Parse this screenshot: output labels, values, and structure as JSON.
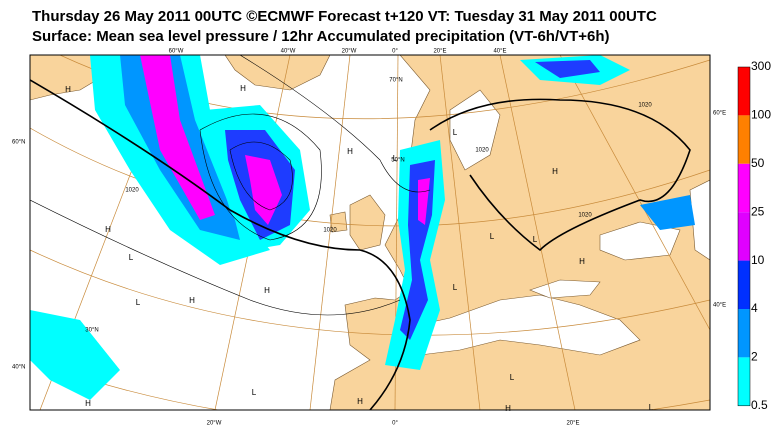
{
  "header": {
    "line1": "Thursday 26 May 2011 00UTC ©ECMWF Forecast t+120 VT: Tuesday 31 May 2011 00UTC",
    "line2": "Surface: Mean sea level pressure / 12hr Accumulated precipitation (VT-6h/VT+6h)"
  },
  "colorbar": {
    "labels": [
      300,
      100,
      50,
      25,
      10,
      4,
      2,
      0.5
    ]
  },
  "map": {
    "lon_labels_top": [
      "60°W",
      "40°W",
      "20°W",
      "0°",
      "20°E",
      "40°E"
    ],
    "lat_labels_left": [
      "60°N",
      "40°N"
    ],
    "lat_labels_right": [
      "60°E",
      "40°E"
    ],
    "lon_labels_bottom": [
      "20°W",
      "0°",
      "20°E"
    ],
    "inner_labels": [
      "30°N",
      "70°N",
      "50°N"
    ],
    "pressure_centers": [
      "H",
      "H",
      "H",
      "L",
      "H",
      "L",
      "L",
      "H",
      "L",
      "H",
      "H",
      "L",
      "L",
      "H",
      "L",
      "H",
      "L",
      "H",
      "L",
      "H",
      "L"
    ],
    "isobar_labels": [
      "1020",
      "1020",
      "1020",
      "1020",
      "1020"
    ]
  }
}
